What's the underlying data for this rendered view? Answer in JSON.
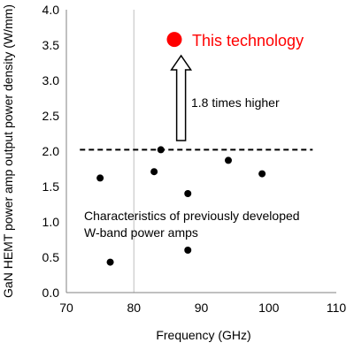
{
  "chart_data": {
    "type": "scatter",
    "xlabel": "Frequency (GHz)",
    "ylabel": "GaN HEMT power amp output power density (W/mm)",
    "xlim": [
      70,
      110
    ],
    "ylim": [
      0,
      4
    ],
    "x_ticks": [
      "70",
      "80",
      "90",
      "100",
      "110"
    ],
    "y_ticks": [
      "0.0",
      "0.5",
      "1.0",
      "1.5",
      "2.0",
      "2.5",
      "3.0",
      "3.5",
      "4.0"
    ],
    "grid": "vertical gridline at x = 80 only",
    "legend": "none",
    "series": [
      {
        "name": "Characteristics of previously developed W-band power amps",
        "color": "#000000",
        "points": [
          {
            "x": 75,
            "y": 1.62
          },
          {
            "x": 76.5,
            "y": 0.43
          },
          {
            "x": 83,
            "y": 1.71
          },
          {
            "x": 84,
            "y": 2.02
          },
          {
            "x": 88,
            "y": 1.4
          },
          {
            "x": 88,
            "y": 0.6
          },
          {
            "x": 94,
            "y": 1.87
          },
          {
            "x": 99,
            "y": 1.68
          }
        ]
      },
      {
        "name": "This technology",
        "color": "#ff0000",
        "points": [
          {
            "x": 86,
            "y": 3.58
          }
        ]
      }
    ],
    "reference_line": {
      "style": "dashed",
      "y": 2.02,
      "x_range": [
        72,
        106.5
      ]
    },
    "arrow": {
      "x": 87,
      "from_y": 2.15,
      "to_y": 3.35,
      "label": "1.8 times higher"
    },
    "annotations": {
      "highlight_label": "This technology",
      "group_label_line1": "Characteristics of previously developed",
      "group_label_line2": "W-band power amps"
    }
  }
}
